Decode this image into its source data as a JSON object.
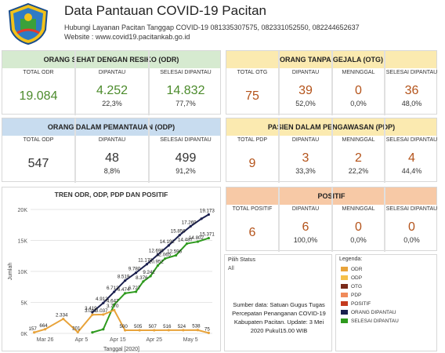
{
  "header": {
    "title": "Data Pantauan COVID-19 Pacitan",
    "hotline": "Hubungi Layanan Pacitan Tanggap COVID-19 081335307575,  082331052550, 082244652637",
    "website": "Website : www.covid19.pacitankab.go.id"
  },
  "odr": {
    "title": "ORANG SEHAT DENGAN RESIKO (ODR)",
    "cols": [
      {
        "head": "TOTAL ODR",
        "value": "19.084",
        "pct": ""
      },
      {
        "head": "DIPANTAU",
        "value": "4.252",
        "pct": "22,3%"
      },
      {
        "head": "SELESAI DIPANTAU",
        "value": "14.832",
        "pct": "77,7%"
      }
    ]
  },
  "otg": {
    "title": "ORANG TANPA GEJALA (OTG)",
    "cols": [
      {
        "head": "TOTAL OTG",
        "value": "75",
        "pct": ""
      },
      {
        "head": "DIPANTAU",
        "value": "39",
        "pct": "52,0%"
      },
      {
        "head": "MENINGGAL",
        "value": "0",
        "pct": "0,0%"
      },
      {
        "head": "SELESAI DIPANTAU",
        "value": "36",
        "pct": "48,0%"
      }
    ]
  },
  "odp": {
    "title": "ORANG DALAM PEMANTAUAN (ODP)",
    "cols": [
      {
        "head": "TOTAL ODP",
        "value": "547",
        "pct": ""
      },
      {
        "head": "DIPANTAU",
        "value": "48",
        "pct": "8,8%"
      },
      {
        "head": "SELESAI DIPANTAU",
        "value": "499",
        "pct": "91,2%"
      }
    ]
  },
  "pdp": {
    "title": "PASIEN DALAM PENGAWASAN (PDP)",
    "cols": [
      {
        "head": "TOTAL PDP",
        "value": "9",
        "pct": ""
      },
      {
        "head": "DIPANTAU",
        "value": "3",
        "pct": "33,3%"
      },
      {
        "head": "MENINGGAL",
        "value": "2",
        "pct": "22,2%"
      },
      {
        "head": "SELESAI DIPANTAU",
        "value": "4",
        "pct": "44,4%"
      }
    ]
  },
  "positif": {
    "title": "POSITIF",
    "cols": [
      {
        "head": "TOTAL POSITIF",
        "value": "6",
        "pct": ""
      },
      {
        "head": "DIPANTAU",
        "value": "6",
        "pct": "100,0%"
      },
      {
        "head": "MENINGGAL",
        "value": "0",
        "pct": "0,0%"
      },
      {
        "head": "SELESAI DIPANTAU",
        "value": "0",
        "pct": "0,0%"
      }
    ]
  },
  "filter": {
    "label": "Pilih Status",
    "value": "All"
  },
  "source_text": "Sumber data: Satuan Gugus Tugas Percepatan Penanganan COVID-19 Kabupaten Pacitan. Update: 3 Mei 2020 Pukul15.00 WIB",
  "legend": {
    "title": "Legenda:",
    "items": [
      {
        "label": "ODR",
        "color": "#e8a33a"
      },
      {
        "label": "ODP",
        "color": "#f5c04a"
      },
      {
        "label": "OTG",
        "color": "#7a2a1a"
      },
      {
        "label": "PDP",
        "color": "#f08a5a"
      },
      {
        "label": "POSITIF",
        "color": "#c43a1e"
      },
      {
        "label": "ORANG DIPANTAU",
        "color": "#1a1f4e"
      },
      {
        "label": "SELESAI DIPANTAU",
        "color": "#2e9a1e"
      }
    ]
  },
  "chart_data": {
    "type": "line",
    "title": "TREN ODR, ODP, PDP DAN POSITIF",
    "xlabel": "Tanggal [2020]",
    "ylabel": "Jumlah",
    "ylim": [
      0,
      20000
    ],
    "yticks": [
      "0K",
      "5K",
      "10K",
      "15K",
      "20K"
    ],
    "xticks": [
      "Mar 26",
      "Apr 5",
      "Apr 15",
      "Apr 25",
      "May 5"
    ],
    "xrange_days": [
      0,
      50
    ],
    "series": [
      {
        "name": "ORANG DIPANTAU",
        "color": "#1a1f4e",
        "x": [
          17,
          20,
          23,
          26,
          29,
          32,
          35,
          38,
          41,
          44,
          47,
          49
        ],
        "y": [
          3419,
          4912,
          6713,
          8519,
          9780,
          11171,
          12696,
          14192,
          15856,
          17269,
          18500,
          19173
        ],
        "labels": [
          "3.419",
          "4.912",
          "6.713",
          "8.519",
          "9.780",
          "11.171",
          "12.696",
          "14.192",
          "15.856",
          "17.269",
          "",
          "19.173"
        ]
      },
      {
        "name": "SELESAI DIPANTAU",
        "color": "#2e9a1e",
        "x": [
          17,
          20,
          23,
          26,
          29,
          31,
          33,
          35,
          37,
          40,
          43,
          46,
          49
        ],
        "y": [
          157,
          664,
          4647,
          6474,
          6727,
          8376,
          9242,
          10952,
          12065,
          12596,
          14487,
          14802,
          15371
        ],
        "labels": [
          "",
          "",
          "4.647",
          "6.474",
          "6.727",
          "8.376",
          "9.242",
          "10.952",
          "12.065",
          "12.596",
          "14.487",
          "14.802",
          "15.371"
        ]
      },
      {
        "name": "ODR",
        "color": "#e8a33a",
        "x": [
          1,
          4,
          9,
          13,
          17,
          20,
          23,
          26,
          30,
          34,
          38,
          42,
          46,
          49
        ],
        "y": [
          157,
          664,
          2334,
          201,
          3012,
          3037,
          3770,
          500,
          505,
          507,
          516,
          524,
          538,
          75
        ],
        "labels": [
          "157",
          "664",
          "2.334",
          "201",
          "3.012",
          "3.037",
          "3.770",
          "500",
          "505",
          "507",
          "516",
          "524",
          "538",
          "75"
        ]
      }
    ]
  }
}
